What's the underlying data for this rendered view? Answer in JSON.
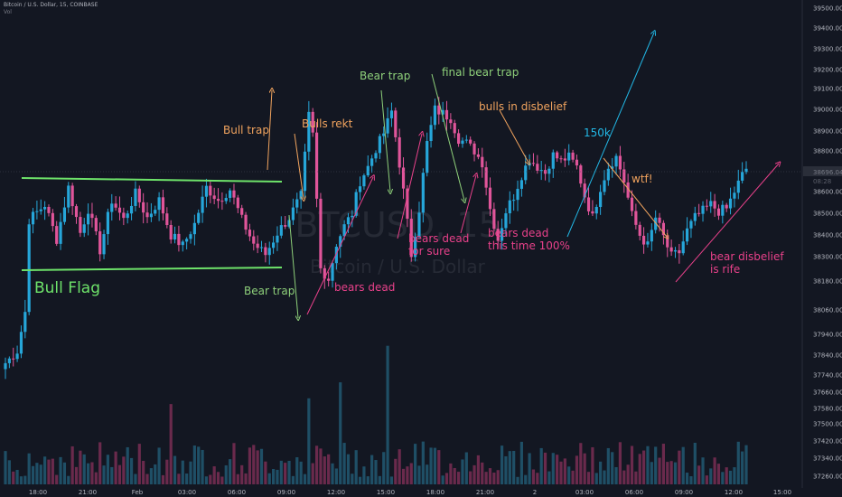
{
  "header": {
    "symbol_line": "Bitcoin / U.S. Dollar, 15, COINBASE",
    "vol_label": "Vol"
  },
  "watermark": {
    "ticker": "BTCUSD, 15",
    "name": "Bitcoin / U.S. Dollar"
  },
  "colors": {
    "bg": "#131722",
    "up": "#26a6d9",
    "down": "#e0559a",
    "vol_up": "#1f4f66",
    "vol_down": "#6a2a4c",
    "bull_flag": "#6ee36a",
    "green_ann": "#8ed07a",
    "orange_ann": "#f0a35e",
    "pink_ann": "#e8418a",
    "cyan_ann": "#22b8e6"
  },
  "chart_data": {
    "type": "candlestick",
    "title": "",
    "ylim": [
      37220,
      39540
    ],
    "y_ticks": [
      37260,
      37340,
      37420,
      37500,
      37580,
      37660,
      37740,
      37840,
      37940,
      38060,
      38180,
      38300,
      38400,
      38500,
      38600,
      38700,
      38800,
      38900,
      39000,
      39100,
      39200,
      39300,
      39400,
      39500
    ],
    "x_ticks": [
      "18:00",
      "21:00",
      "Feb",
      "03:00",
      "06:00",
      "09:00",
      "12:00",
      "15:00",
      "18:00",
      "21:00",
      "2",
      "03:00",
      "06:00",
      "09:00",
      "12:00",
      "15:00"
    ],
    "last_price": "38696.04",
    "price_tag2": "08:28",
    "anchors": [
      [
        0,
        37800
      ],
      [
        3,
        37860
      ],
      [
        5,
        38050
      ],
      [
        6,
        38470
      ],
      [
        10,
        38540
      ],
      [
        13,
        38380
      ],
      [
        16,
        38620
      ],
      [
        19,
        38410
      ],
      [
        21,
        38520
      ],
      [
        24,
        38330
      ],
      [
        27,
        38560
      ],
      [
        30,
        38470
      ],
      [
        33,
        38590
      ],
      [
        36,
        38480
      ],
      [
        39,
        38560
      ],
      [
        42,
        38400
      ],
      [
        45,
        38350
      ],
      [
        48,
        38450
      ],
      [
        51,
        38620
      ],
      [
        54,
        38560
      ],
      [
        57,
        38610
      ],
      [
        60,
        38470
      ],
      [
        63,
        38360
      ],
      [
        66,
        38310
      ],
      [
        69,
        38410
      ],
      [
        72,
        38480
      ],
      [
        75,
        38580
      ],
      [
        77,
        38970
      ],
      [
        78,
        38880
      ],
      [
        80,
        38240
      ],
      [
        82,
        38190
      ],
      [
        84,
        38360
      ],
      [
        86,
        38440
      ],
      [
        88,
        38500
      ],
      [
        90,
        38650
      ],
      [
        92,
        38720
      ],
      [
        94,
        38810
      ],
      [
        96,
        38890
      ],
      [
        98,
        38990
      ],
      [
        99,
        38870
      ],
      [
        101,
        38600
      ],
      [
        103,
        38310
      ],
      [
        105,
        38520
      ],
      [
        107,
        38840
      ],
      [
        109,
        39000
      ],
      [
        111,
        38980
      ],
      [
        113,
        38960
      ],
      [
        115,
        38860
      ],
      [
        117,
        38840
      ],
      [
        119,
        38800
      ],
      [
        121,
        38740
      ],
      [
        123,
        38520
      ],
      [
        125,
        38380
      ],
      [
        127,
        38510
      ],
      [
        129,
        38580
      ],
      [
        131,
        38680
      ],
      [
        133,
        38760
      ],
      [
        135,
        38720
      ],
      [
        137,
        38690
      ],
      [
        139,
        38780
      ],
      [
        141,
        38750
      ],
      [
        143,
        38770
      ],
      [
        145,
        38720
      ],
      [
        147,
        38580
      ],
      [
        149,
        38480
      ],
      [
        151,
        38620
      ],
      [
        153,
        38720
      ],
      [
        155,
        38770
      ],
      [
        157,
        38650
      ],
      [
        159,
        38490
      ],
      [
        161,
        38400
      ],
      [
        163,
        38350
      ],
      [
        165,
        38480
      ],
      [
        167,
        38390
      ],
      [
        169,
        38300
      ],
      [
        171,
        38320
      ],
      [
        173,
        38420
      ],
      [
        175,
        38480
      ],
      [
        177,
        38510
      ],
      [
        179,
        38540
      ],
      [
        181,
        38510
      ],
      [
        183,
        38520
      ],
      [
        185,
        38600
      ],
      [
        187,
        38680
      ],
      [
        188,
        38710
      ]
    ]
  },
  "annotations": {
    "bull_flag": "Bull Flag",
    "bull_trap": "Bull trap",
    "bulls_rekt": "Bulls rekt",
    "bear_trap_1": "Bear trap",
    "bear_trap_2": "Bear trap",
    "final_bear_trap": "final bear trap",
    "bulls_in_disbelief": "bulls in disbelief",
    "target_150k": "150k",
    "wtf": "wtf!",
    "bears_dead": "bears dead",
    "bears_dead_sure_1": "bears dead",
    "bears_dead_sure_2": "for sure",
    "bears_dead_100_1": "bears dead",
    "bears_dead_100_2": "this time 100%",
    "bear_disbelief_1": "bear disbelief",
    "bear_disbelief_2": "is rife"
  }
}
